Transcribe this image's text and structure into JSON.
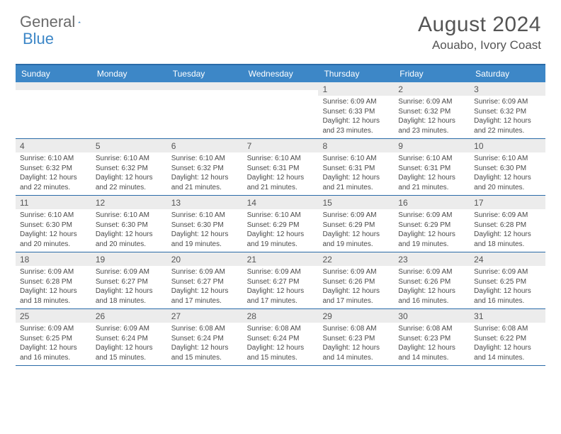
{
  "logo": {
    "part1": "General",
    "part2": "Blue"
  },
  "title": "August 2024",
  "location": "Aouabo, Ivory Coast",
  "colors": {
    "header_bg": "#3d87c7",
    "border": "#2a6ba8",
    "daynum_bg": "#ececec",
    "text": "#4a4a4a",
    "title_text": "#555555"
  },
  "daynames": [
    "Sunday",
    "Monday",
    "Tuesday",
    "Wednesday",
    "Thursday",
    "Friday",
    "Saturday"
  ],
  "weeks": [
    [
      {
        "n": "",
        "sr": "",
        "ss": "",
        "dl": ""
      },
      {
        "n": "",
        "sr": "",
        "ss": "",
        "dl": ""
      },
      {
        "n": "",
        "sr": "",
        "ss": "",
        "dl": ""
      },
      {
        "n": "",
        "sr": "",
        "ss": "",
        "dl": ""
      },
      {
        "n": "1",
        "sr": "Sunrise: 6:09 AM",
        "ss": "Sunset: 6:33 PM",
        "dl": "Daylight: 12 hours and 23 minutes."
      },
      {
        "n": "2",
        "sr": "Sunrise: 6:09 AM",
        "ss": "Sunset: 6:32 PM",
        "dl": "Daylight: 12 hours and 23 minutes."
      },
      {
        "n": "3",
        "sr": "Sunrise: 6:09 AM",
        "ss": "Sunset: 6:32 PM",
        "dl": "Daylight: 12 hours and 22 minutes."
      }
    ],
    [
      {
        "n": "4",
        "sr": "Sunrise: 6:10 AM",
        "ss": "Sunset: 6:32 PM",
        "dl": "Daylight: 12 hours and 22 minutes."
      },
      {
        "n": "5",
        "sr": "Sunrise: 6:10 AM",
        "ss": "Sunset: 6:32 PM",
        "dl": "Daylight: 12 hours and 22 minutes."
      },
      {
        "n": "6",
        "sr": "Sunrise: 6:10 AM",
        "ss": "Sunset: 6:32 PM",
        "dl": "Daylight: 12 hours and 21 minutes."
      },
      {
        "n": "7",
        "sr": "Sunrise: 6:10 AM",
        "ss": "Sunset: 6:31 PM",
        "dl": "Daylight: 12 hours and 21 minutes."
      },
      {
        "n": "8",
        "sr": "Sunrise: 6:10 AM",
        "ss": "Sunset: 6:31 PM",
        "dl": "Daylight: 12 hours and 21 minutes."
      },
      {
        "n": "9",
        "sr": "Sunrise: 6:10 AM",
        "ss": "Sunset: 6:31 PM",
        "dl": "Daylight: 12 hours and 21 minutes."
      },
      {
        "n": "10",
        "sr": "Sunrise: 6:10 AM",
        "ss": "Sunset: 6:30 PM",
        "dl": "Daylight: 12 hours and 20 minutes."
      }
    ],
    [
      {
        "n": "11",
        "sr": "Sunrise: 6:10 AM",
        "ss": "Sunset: 6:30 PM",
        "dl": "Daylight: 12 hours and 20 minutes."
      },
      {
        "n": "12",
        "sr": "Sunrise: 6:10 AM",
        "ss": "Sunset: 6:30 PM",
        "dl": "Daylight: 12 hours and 20 minutes."
      },
      {
        "n": "13",
        "sr": "Sunrise: 6:10 AM",
        "ss": "Sunset: 6:30 PM",
        "dl": "Daylight: 12 hours and 19 minutes."
      },
      {
        "n": "14",
        "sr": "Sunrise: 6:10 AM",
        "ss": "Sunset: 6:29 PM",
        "dl": "Daylight: 12 hours and 19 minutes."
      },
      {
        "n": "15",
        "sr": "Sunrise: 6:09 AM",
        "ss": "Sunset: 6:29 PM",
        "dl": "Daylight: 12 hours and 19 minutes."
      },
      {
        "n": "16",
        "sr": "Sunrise: 6:09 AM",
        "ss": "Sunset: 6:29 PM",
        "dl": "Daylight: 12 hours and 19 minutes."
      },
      {
        "n": "17",
        "sr": "Sunrise: 6:09 AM",
        "ss": "Sunset: 6:28 PM",
        "dl": "Daylight: 12 hours and 18 minutes."
      }
    ],
    [
      {
        "n": "18",
        "sr": "Sunrise: 6:09 AM",
        "ss": "Sunset: 6:28 PM",
        "dl": "Daylight: 12 hours and 18 minutes."
      },
      {
        "n": "19",
        "sr": "Sunrise: 6:09 AM",
        "ss": "Sunset: 6:27 PM",
        "dl": "Daylight: 12 hours and 18 minutes."
      },
      {
        "n": "20",
        "sr": "Sunrise: 6:09 AM",
        "ss": "Sunset: 6:27 PM",
        "dl": "Daylight: 12 hours and 17 minutes."
      },
      {
        "n": "21",
        "sr": "Sunrise: 6:09 AM",
        "ss": "Sunset: 6:27 PM",
        "dl": "Daylight: 12 hours and 17 minutes."
      },
      {
        "n": "22",
        "sr": "Sunrise: 6:09 AM",
        "ss": "Sunset: 6:26 PM",
        "dl": "Daylight: 12 hours and 17 minutes."
      },
      {
        "n": "23",
        "sr": "Sunrise: 6:09 AM",
        "ss": "Sunset: 6:26 PM",
        "dl": "Daylight: 12 hours and 16 minutes."
      },
      {
        "n": "24",
        "sr": "Sunrise: 6:09 AM",
        "ss": "Sunset: 6:25 PM",
        "dl": "Daylight: 12 hours and 16 minutes."
      }
    ],
    [
      {
        "n": "25",
        "sr": "Sunrise: 6:09 AM",
        "ss": "Sunset: 6:25 PM",
        "dl": "Daylight: 12 hours and 16 minutes."
      },
      {
        "n": "26",
        "sr": "Sunrise: 6:09 AM",
        "ss": "Sunset: 6:24 PM",
        "dl": "Daylight: 12 hours and 15 minutes."
      },
      {
        "n": "27",
        "sr": "Sunrise: 6:08 AM",
        "ss": "Sunset: 6:24 PM",
        "dl": "Daylight: 12 hours and 15 minutes."
      },
      {
        "n": "28",
        "sr": "Sunrise: 6:08 AM",
        "ss": "Sunset: 6:24 PM",
        "dl": "Daylight: 12 hours and 15 minutes."
      },
      {
        "n": "29",
        "sr": "Sunrise: 6:08 AM",
        "ss": "Sunset: 6:23 PM",
        "dl": "Daylight: 12 hours and 14 minutes."
      },
      {
        "n": "30",
        "sr": "Sunrise: 6:08 AM",
        "ss": "Sunset: 6:23 PM",
        "dl": "Daylight: 12 hours and 14 minutes."
      },
      {
        "n": "31",
        "sr": "Sunrise: 6:08 AM",
        "ss": "Sunset: 6:22 PM",
        "dl": "Daylight: 12 hours and 14 minutes."
      }
    ]
  ]
}
